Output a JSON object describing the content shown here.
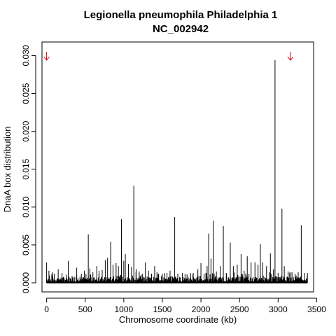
{
  "chart_data": {
    "type": "bar",
    "title": "Legionella pneumophila Philadelphia 1",
    "subtitle": "NC_002942",
    "xlabel": "Chromosome coordinate (kb)",
    "ylabel": "DnaA box distribution",
    "xlim": [
      -60,
      3460
    ],
    "ylim": [
      -0.0012,
      0.0318
    ],
    "x_ticks": [
      "0",
      "500",
      "1000",
      "1500",
      "2000",
      "2500",
      "3000",
      "3500"
    ],
    "x_tick_values": [
      0,
      500,
      1000,
      1500,
      2000,
      2500,
      3000,
      3500
    ],
    "y_ticks": [
      "0.000",
      "0.005",
      "0.010",
      "0.015",
      "0.020",
      "0.025",
      "0.030"
    ],
    "y_tick_values": [
      0,
      0.005,
      0.01,
      0.015,
      0.02,
      0.025,
      0.03
    ],
    "grid": false,
    "bar_color": "#000000",
    "marker_color": "#cc0000",
    "markers": [
      {
        "x": 0,
        "label": "arrow-down"
      },
      {
        "x": 3160,
        "label": "arrow-down"
      }
    ],
    "spikes": {
      "x": [
        0,
        30,
        80,
        100,
        150,
        200,
        280,
        330,
        390,
        450,
        490,
        540,
        560,
        600,
        650,
        680,
        720,
        760,
        790,
        830,
        860,
        900,
        930,
        970,
        1000,
        1020,
        1060,
        1100,
        1130,
        1160,
        1200,
        1240,
        1280,
        1320,
        1360,
        1400,
        1430,
        1500,
        1560,
        1600,
        1660,
        1700,
        1760,
        1820,
        1900,
        1960,
        2000,
        2040,
        2080,
        2100,
        2130,
        2160,
        2200,
        2250,
        2290,
        2330,
        2380,
        2420,
        2470,
        2520,
        2560,
        2600,
        2650,
        2700,
        2740,
        2770,
        2800,
        2850,
        2900,
        2940,
        2960,
        3000,
        3050,
        3080,
        3130,
        3180,
        3220,
        3260,
        3300,
        3340,
        3380
      ],
      "values": [
        0.0027,
        0.0016,
        0.0014,
        0.0012,
        0.0018,
        0.0013,
        0.0029,
        0.0009,
        0.002,
        0.0012,
        0.0016,
        0.0064,
        0.0019,
        0.0014,
        0.0022,
        0.0016,
        0.0017,
        0.003,
        0.0033,
        0.0054,
        0.0024,
        0.0026,
        0.0022,
        0.0084,
        0.0029,
        0.0038,
        0.0025,
        0.0021,
        0.0128,
        0.0018,
        0.0015,
        0.0012,
        0.0027,
        0.0016,
        0.0012,
        0.0022,
        0.0014,
        0.0012,
        0.0013,
        0.0016,
        0.0087,
        0.0012,
        0.0013,
        0.0011,
        0.0013,
        0.0018,
        0.0026,
        0.0012,
        0.0022,
        0.0065,
        0.0032,
        0.0082,
        0.0015,
        0.0022,
        0.0075,
        0.0012,
        0.0053,
        0.0022,
        0.0024,
        0.0038,
        0.0016,
        0.0035,
        0.0027,
        0.0027,
        0.0024,
        0.0051,
        0.0027,
        0.0022,
        0.0039,
        0.0018,
        0.0294,
        0.0013,
        0.0098,
        0.0022,
        0.0015,
        0.0014,
        0.0012,
        0.0014,
        0.0076,
        0.0013,
        0.0013
      ]
    }
  }
}
